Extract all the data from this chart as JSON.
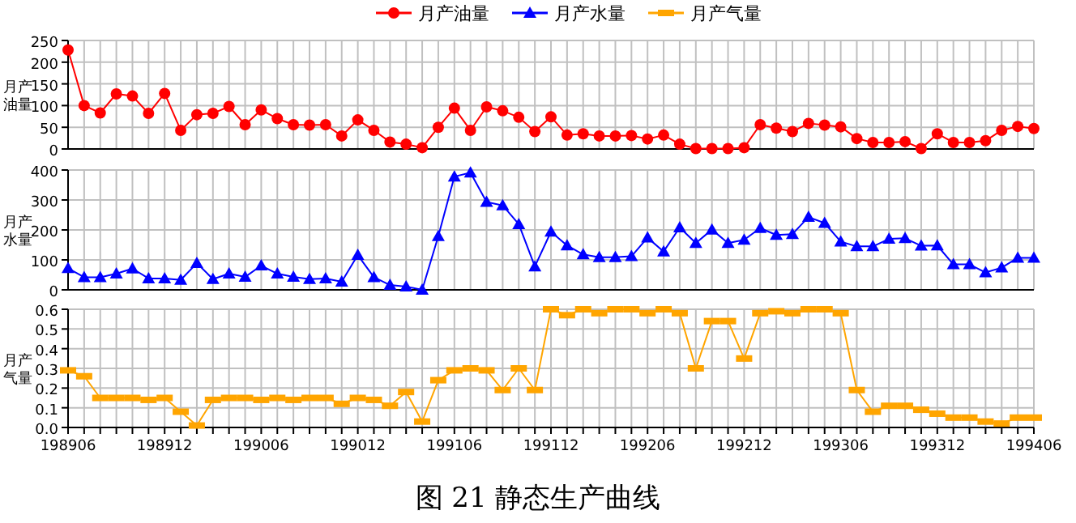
{
  "chart_data": [
    {
      "type": "line",
      "ylabel": "月产油量",
      "categories": [
        "198906",
        null,
        null,
        null,
        null,
        null,
        "198912",
        null,
        null,
        null,
        null,
        null,
        "199006",
        null,
        null,
        null,
        null,
        null,
        "199012",
        null,
        null,
        null,
        null,
        null,
        "199106",
        null,
        null,
        null,
        null,
        null,
        "199112",
        null,
        null,
        null,
        null,
        null,
        "199206",
        null,
        null,
        null,
        null,
        null,
        "199212",
        null,
        null,
        null,
        null,
        null,
        "199306",
        null,
        null,
        null,
        null,
        null,
        "199312",
        null,
        null,
        null,
        null,
        null,
        "199406"
      ],
      "series": [
        {
          "name": "月产油量",
          "color": "#ff0000",
          "marker": "circle",
          "values": [
            228,
            100,
            83,
            127,
            122,
            82,
            128,
            43,
            79,
            82,
            98,
            56,
            90,
            70,
            56,
            55,
            56,
            30,
            67,
            43,
            16,
            11,
            3,
            50,
            94,
            43,
            97,
            88,
            73,
            40,
            74,
            32,
            35,
            30,
            30,
            31,
            23,
            32,
            11,
            1,
            1,
            1,
            3,
            56,
            48,
            40,
            59,
            55,
            51,
            24,
            15,
            15,
            17,
            1,
            35,
            15,
            15,
            19,
            43,
            52,
            47
          ]
        }
      ],
      "ylim": [
        0,
        250
      ],
      "yticks": [
        0,
        50,
        100,
        150,
        200,
        250
      ],
      "grid": true,
      "legend": "top",
      "tick_labels": "y",
      "line_style": "solid"
    },
    {
      "type": "line",
      "ylabel": "月产水量",
      "categories": [
        "198906",
        null,
        null,
        null,
        null,
        null,
        "198912",
        null,
        null,
        null,
        null,
        null,
        "199006",
        null,
        null,
        null,
        null,
        null,
        "199012",
        null,
        null,
        null,
        null,
        null,
        "199106",
        null,
        null,
        null,
        null,
        null,
        "199112",
        null,
        null,
        null,
        null,
        null,
        "199206",
        null,
        null,
        null,
        null,
        null,
        "199212",
        null,
        null,
        null,
        null,
        null,
        "199306",
        null,
        null,
        null,
        null,
        null,
        "199312",
        null,
        null,
        null,
        null,
        null,
        "199406"
      ],
      "series": [
        {
          "name": "月产水量",
          "color": "#0000ff",
          "marker": "triangle",
          "values": [
            72,
            42,
            42,
            54,
            71,
            38,
            38,
            33,
            89,
            36,
            54,
            43,
            81,
            54,
            43,
            36,
            38,
            27,
            116,
            42,
            16,
            11,
            0,
            179,
            378,
            391,
            293,
            282,
            219,
            78,
            194,
            148,
            118,
            109,
            109,
            112,
            174,
            128,
            208,
            156,
            201,
            156,
            167,
            206,
            183,
            186,
            243,
            223,
            161,
            145,
            145,
            170,
            172,
            147,
            148,
            85,
            85,
            58,
            74,
            107,
            107
          ]
        }
      ],
      "ylim": [
        0,
        400
      ],
      "yticks": [
        0,
        100,
        200,
        300,
        400
      ],
      "grid": true,
      "legend": "top",
      "tick_labels": "y",
      "line_style": "solid"
    },
    {
      "type": "line",
      "ylabel": "月产气量",
      "categories": [
        "198906",
        null,
        null,
        null,
        null,
        null,
        "198912",
        null,
        null,
        null,
        null,
        null,
        "199006",
        null,
        null,
        null,
        null,
        null,
        "199012",
        null,
        null,
        null,
        null,
        null,
        "199106",
        null,
        null,
        null,
        null,
        null,
        "199112",
        null,
        null,
        null,
        null,
        null,
        "199206",
        null,
        null,
        null,
        null,
        null,
        "199212",
        null,
        null,
        null,
        null,
        null,
        "199306",
        null,
        null,
        null,
        null,
        null,
        "199312",
        null,
        null,
        null,
        null,
        null,
        "199406"
      ],
      "series": [
        {
          "name": "月产气量",
          "color": "#ffa500",
          "marker": "square",
          "values": [
            0.29,
            0.26,
            0.15,
            0.15,
            0.15,
            0.14,
            0.15,
            0.08,
            0.01,
            0.14,
            0.15,
            0.15,
            0.14,
            0.15,
            0.14,
            0.15,
            0.15,
            0.12,
            0.15,
            0.14,
            0.11,
            0.18,
            0.03,
            0.24,
            0.29,
            0.3,
            0.29,
            0.19,
            0.3,
            0.19,
            0.6,
            0.57,
            0.6,
            0.58,
            0.6,
            0.6,
            0.58,
            0.6,
            0.58,
            0.3,
            0.54,
            0.54,
            0.35,
            0.58,
            0.59,
            0.58,
            0.6,
            0.6,
            0.58,
            0.19,
            0.08,
            0.11,
            0.11,
            0.09,
            0.07,
            0.05,
            0.05,
            0.03,
            0.02,
            0.05,
            0.05
          ]
        }
      ],
      "ylim": [
        0,
        0.6
      ],
      "yticks": [
        {
          "value": 0,
          "label": "0.0"
        },
        {
          "value": 0.1,
          "label": "0.1"
        },
        {
          "value": 0.2,
          "label": "0.2"
        },
        {
          "value": 0.3,
          "label": "0.3"
        },
        {
          "value": 0.4,
          "label": "0.4"
        },
        {
          "value": 0.5,
          "label": "0.5"
        },
        {
          "value": 0.6,
          "label": "0.6"
        }
      ],
      "grid": true,
      "legend": "top",
      "line_style": "solid",
      "annotations": [
        "图 21  静态生产曲线"
      ]
    }
  ]
}
